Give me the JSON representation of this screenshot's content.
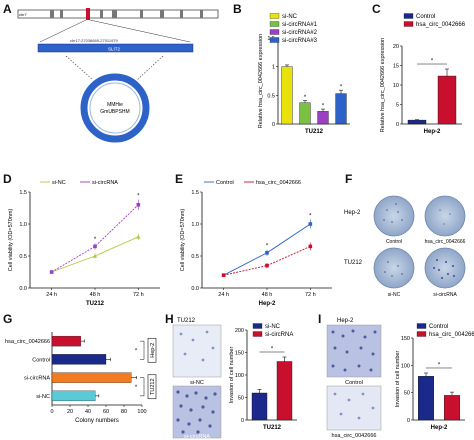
{
  "panels": {
    "A": "A",
    "B": "B",
    "C": "C",
    "D": "D",
    "E": "E",
    "F": "F",
    "G": "G",
    "H": "H",
    "I": "I"
  },
  "panel_a": {
    "chrom_label": "chr7",
    "gene_label": "SLIT2",
    "coord_label": "chr17:27036689-27011979",
    "plasmid_label_1": "MMHie",
    "plasmid_label_2": "GmUBPSHM"
  },
  "panel_f": {
    "row1_label": "Hep-2",
    "row2_label": "TU212",
    "captions": [
      "Control",
      "hsa_circ_0042666",
      "si-NC",
      "si-circRNA"
    ]
  },
  "panel_h": {
    "title": "TU212",
    "img_top_caption": "si-NC",
    "img_bottom_caption": "si-circRNA"
  },
  "panel_i": {
    "title": "Hep-2",
    "img_top_caption": "Control",
    "img_bottom_caption": "hsa_circ_0042666"
  },
  "colors": {
    "navy": "#1b2a8a",
    "red": "#c8102e",
    "yellow": "#e8e10a",
    "green": "#7ac143",
    "purple": "#9b3fc4",
    "blue": "#2d63c8",
    "orange": "#f07b22",
    "cyan": "#5cc9d6",
    "olive": "#b7c447"
  },
  "chart_data": [
    {
      "id": "B",
      "type": "bar",
      "categories": [
        "si-NC",
        "si-circRNA#1",
        "si-circRNA#2",
        "si-circRNA#3"
      ],
      "values": [
        1.0,
        0.37,
        0.22,
        0.53
      ],
      "errors": [
        0.03,
        0.04,
        0.04,
        0.06
      ],
      "ylabel": "Relative hsa_circ_0042666 expression",
      "xlabel": "TU212",
      "yticks": [
        0.0,
        0.5,
        1.0,
        1.5
      ],
      "ylim": [
        0,
        1.5
      ],
      "legend": [
        "si-NC",
        "si-circRNA#1",
        "si-circRNA#2",
        "si-circRNA#3"
      ],
      "stars": [
        "",
        "*",
        "*",
        "*"
      ]
    },
    {
      "id": "C",
      "type": "bar",
      "categories": [
        "Control",
        "hsa_circ_0042666"
      ],
      "values": [
        1.0,
        12.3
      ],
      "errors": [
        0.1,
        1.8
      ],
      "ylabel": "Relative hsa_circ_0042666 expression",
      "xlabel": "Hep-2",
      "yticks": [
        0,
        5,
        10,
        15,
        20
      ],
      "ylim": [
        0,
        20
      ],
      "legend": [
        "Control",
        "hsa_circ_0042666"
      ],
      "significance": "*"
    },
    {
      "id": "D",
      "type": "line",
      "x": [
        "24 h",
        "48 h",
        "72 h"
      ],
      "series": [
        {
          "name": "si-NC",
          "values": [
            0.25,
            0.5,
            0.8
          ],
          "errors": [
            0.02,
            0.04,
            0.05
          ]
        },
        {
          "name": "si-circRNA",
          "values": [
            0.25,
            0.65,
            1.3
          ],
          "errors": [
            0.02,
            0.05,
            0.08
          ]
        }
      ],
      "ylabel": "Cell viability (OD=570nm)",
      "xlabel": "TU212",
      "yticks": [
        0.0,
        0.5,
        1.0,
        1.5
      ],
      "ylim": [
        0,
        1.5
      ],
      "stars": [
        "",
        "*",
        "*"
      ]
    },
    {
      "id": "E",
      "type": "line",
      "x": [
        "24 h",
        "48 h",
        "72 h"
      ],
      "series": [
        {
          "name": "Control",
          "values": [
            0.2,
            0.55,
            1.0
          ],
          "errors": [
            0.02,
            0.05,
            0.07
          ]
        },
        {
          "name": "hsa_circ_0042666",
          "values": [
            0.2,
            0.35,
            0.65
          ],
          "errors": [
            0.02,
            0.04,
            0.06
          ]
        }
      ],
      "ylabel": "Cell viability (OD=570nm)",
      "xlabel": "Hep-2",
      "yticks": [
        0.0,
        0.5,
        1.0,
        1.5
      ],
      "ylim": [
        0,
        1.5
      ],
      "stars": [
        "",
        "*",
        "*"
      ]
    },
    {
      "id": "G",
      "type": "bar",
      "orientation": "horizontal",
      "categories": [
        "hsa_circ_0042666",
        "Control",
        "si-circRNA",
        "si-NC"
      ],
      "values": [
        32,
        60,
        88,
        48
      ],
      "errors": [
        4,
        5,
        6,
        4
      ],
      "xlabel": "Colony numbers",
      "xticks": [
        0,
        20,
        40,
        60,
        80,
        100
      ],
      "xlim": [
        0,
        100
      ],
      "group_labels": [
        "Hep-2",
        "TU212"
      ],
      "significance": "*"
    },
    {
      "id": "H",
      "type": "bar",
      "categories": [
        "si-NC",
        "si-circRNA"
      ],
      "values": [
        60,
        130
      ],
      "errors": [
        8,
        10
      ],
      "ylabel": "Invasion of cell number",
      "xlabel": "TU212",
      "yticks": [
        0,
        50,
        100,
        150,
        200
      ],
      "ylim": [
        0,
        200
      ],
      "legend": [
        "si-NC",
        "si-circRNA"
      ],
      "significance": "*"
    },
    {
      "id": "I",
      "type": "bar",
      "categories": [
        "Control",
        "hsa_circ_0042666"
      ],
      "values": [
        80,
        45
      ],
      "errors": [
        6,
        6
      ],
      "ylabel": "Invasion of cell number",
      "xlabel": "Hep-2",
      "yticks": [
        0,
        50,
        100,
        150
      ],
      "ylim": [
        0,
        150
      ],
      "legend": [
        "Control",
        "hsa_circ_0042666"
      ],
      "significance": "*"
    }
  ]
}
